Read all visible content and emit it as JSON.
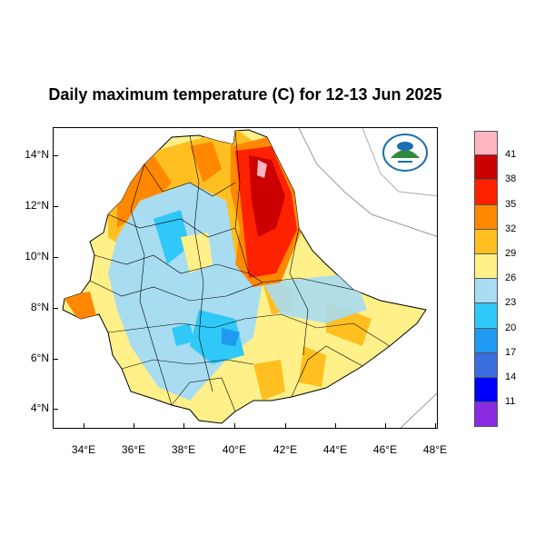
{
  "title": "Daily maximum temperature (C) for 12-13 Jun 2025",
  "y_ticks": [
    "14°N",
    "12°N",
    "10°N",
    "8°N",
    "6°N",
    "4°N"
  ],
  "x_ticks": [
    "34°E",
    "36°E",
    "38°E",
    "40°E",
    "42°E",
    "44°E",
    "46°E",
    "48°E"
  ],
  "legend": {
    "colors": [
      "#ffb6c1",
      "#cc0000",
      "#ff2200",
      "#ff8800",
      "#ffbf20",
      "#fff08a",
      "#a8dcf0",
      "#30c8f8",
      "#1e9af0",
      "#3a6ee0",
      "#0000ff",
      "#8a2be2"
    ],
    "labels": [
      "41",
      "38",
      "35",
      "32",
      "29",
      "26",
      "23",
      "20",
      "17",
      "14",
      "11"
    ]
  },
  "logo": {
    "icon": "meteorology-agency-logo",
    "color": "#1a6fb0"
  }
}
